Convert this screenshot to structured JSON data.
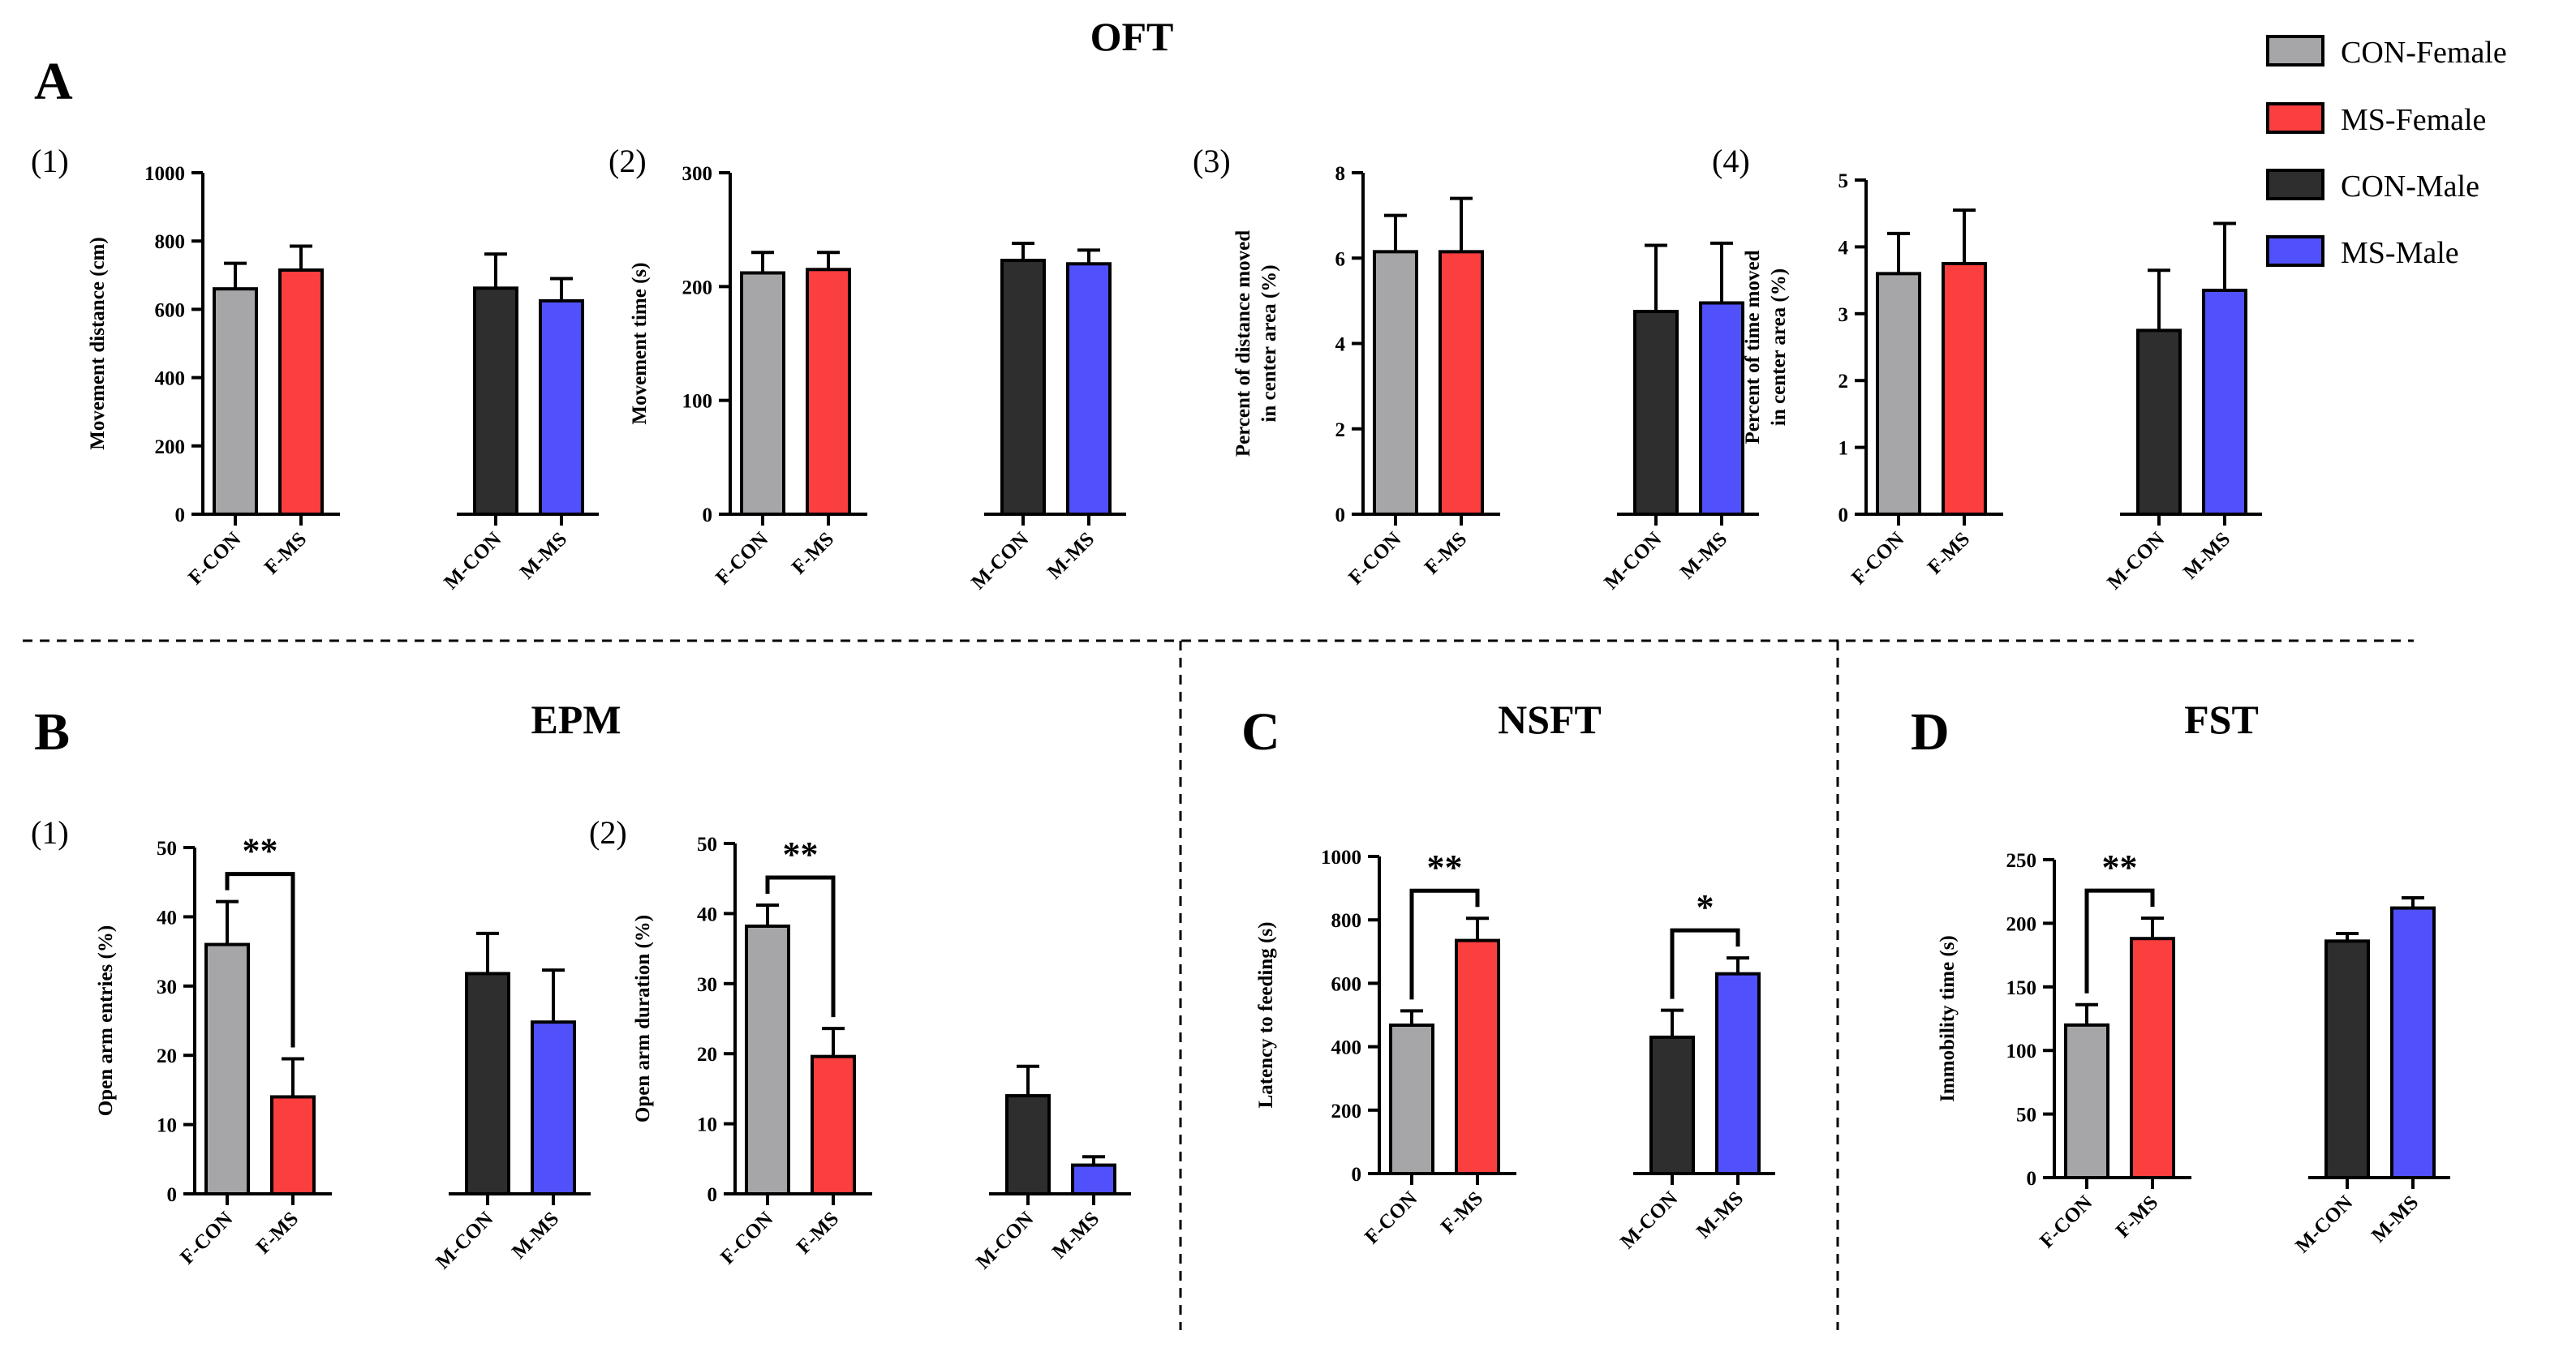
{
  "figure": {
    "panel_letters": [
      "A",
      "B",
      "C",
      "D"
    ],
    "section_titles": {
      "A": "OFT",
      "B": "EPM",
      "C": "NSFT",
      "D": "FST"
    }
  },
  "legend": {
    "items": [
      {
        "label": "CON-Female",
        "color": "#a6a6a8"
      },
      {
        "label": "MS-Female",
        "color": "#fb3e3e"
      },
      {
        "label": "CON-Male",
        "color": "#2e2e2e"
      },
      {
        "label": "MS-Male",
        "color": "#5151fb"
      }
    ]
  },
  "chart_data": [
    {
      "id": "A1",
      "panel": "A",
      "sublabel": "(1)",
      "type": "bar",
      "ylabel": "Movement distance (cm)",
      "categories": [
        "F-CON",
        "F-MS",
        "M-CON",
        "M-MS"
      ],
      "values": [
        660,
        715,
        662,
        625
      ],
      "errors": [
        75,
        70,
        100,
        65
      ],
      "ylim": [
        0,
        1000
      ],
      "yticks": [
        0,
        200,
        400,
        600,
        800,
        1000
      ],
      "significance": []
    },
    {
      "id": "A2",
      "panel": "A",
      "sublabel": "(2)",
      "type": "bar",
      "ylabel": "Movement time (s)",
      "categories": [
        "F-CON",
        "F-MS",
        "M-CON",
        "M-MS"
      ],
      "values": [
        212,
        215,
        223,
        220
      ],
      "errors": [
        18,
        15,
        15,
        12
      ],
      "ylim": [
        0,
        300
      ],
      "yticks": [
        0,
        100,
        200,
        300
      ],
      "significance": []
    },
    {
      "id": "A3",
      "panel": "A",
      "sublabel": "(3)",
      "type": "bar",
      "ylabel": [
        "Percent of distance moved",
        "in center area (%)"
      ],
      "categories": [
        "F-CON",
        "F-MS",
        "M-CON",
        "M-MS"
      ],
      "values": [
        6.15,
        6.15,
        4.75,
        4.95
      ],
      "errors": [
        0.85,
        1.25,
        1.55,
        1.4
      ],
      "ylim": [
        0,
        8
      ],
      "yticks": [
        0,
        2,
        4,
        6,
        8
      ],
      "significance": []
    },
    {
      "id": "A4",
      "panel": "A",
      "sublabel": "(4)",
      "type": "bar",
      "ylabel": [
        "Percent of time moved",
        "in center area (%)"
      ],
      "categories": [
        "F-CON",
        "F-MS",
        "M-CON",
        "M-MS"
      ],
      "values": [
        3.6,
        3.75,
        2.75,
        3.35
      ],
      "errors": [
        0.6,
        0.8,
        0.9,
        1.0
      ],
      "ylim": [
        0,
        5
      ],
      "yticks": [
        0,
        1,
        2,
        3,
        4,
        5
      ],
      "significance": []
    },
    {
      "id": "B1",
      "panel": "B",
      "sublabel": "(1)",
      "type": "bar",
      "ylabel": "Open arm entries (%)",
      "categories": [
        "F-CON",
        "F-MS",
        "M-CON",
        "M-MS"
      ],
      "values": [
        36,
        14,
        31.8,
        24.8
      ],
      "errors": [
        6.2,
        5.5,
        5.8,
        7.5
      ],
      "ylim": [
        0,
        50
      ],
      "yticks": [
        0,
        10,
        20,
        30,
        40,
        50
      ],
      "significance": [
        {
          "a": 0,
          "b": 1,
          "label": "**"
        }
      ]
    },
    {
      "id": "B2",
      "panel": "B",
      "sublabel": "(2)",
      "type": "bar",
      "ylabel": "Open arm duration (%)",
      "categories": [
        "F-CON",
        "F-MS",
        "M-CON",
        "M-MS"
      ],
      "values": [
        38.2,
        19.6,
        14,
        4.1
      ],
      "errors": [
        3,
        4,
        4.2,
        1.2
      ],
      "ylim": [
        0,
        50
      ],
      "yticks": [
        0,
        10,
        20,
        30,
        40,
        50
      ],
      "significance": [
        {
          "a": 0,
          "b": 1,
          "label": "**"
        }
      ]
    },
    {
      "id": "C",
      "panel": "C",
      "sublabel": "",
      "type": "bar",
      "ylabel": "Latency to feeding (s)",
      "categories": [
        "F-CON",
        "F-MS",
        "M-CON",
        "M-MS"
      ],
      "values": [
        468,
        735,
        430,
        630
      ],
      "errors": [
        45,
        70,
        85,
        50
      ],
      "ylim": [
        0,
        1000
      ],
      "yticks": [
        0,
        200,
        400,
        600,
        800,
        1000
      ],
      "significance": [
        {
          "a": 0,
          "b": 1,
          "label": "**"
        },
        {
          "a": 2,
          "b": 3,
          "label": "*"
        }
      ]
    },
    {
      "id": "D",
      "panel": "D",
      "sublabel": "",
      "type": "bar",
      "ylabel": "Immobility time (s)",
      "categories": [
        "F-CON",
        "F-MS",
        "M-CON",
        "M-MS"
      ],
      "values": [
        120,
        188,
        186,
        212
      ],
      "errors": [
        16,
        16,
        6,
        8
      ],
      "ylim": [
        0,
        250
      ],
      "yticks": [
        0,
        50,
        100,
        150,
        200,
        250
      ],
      "significance": [
        {
          "a": 0,
          "b": 1,
          "label": "**"
        }
      ]
    }
  ]
}
